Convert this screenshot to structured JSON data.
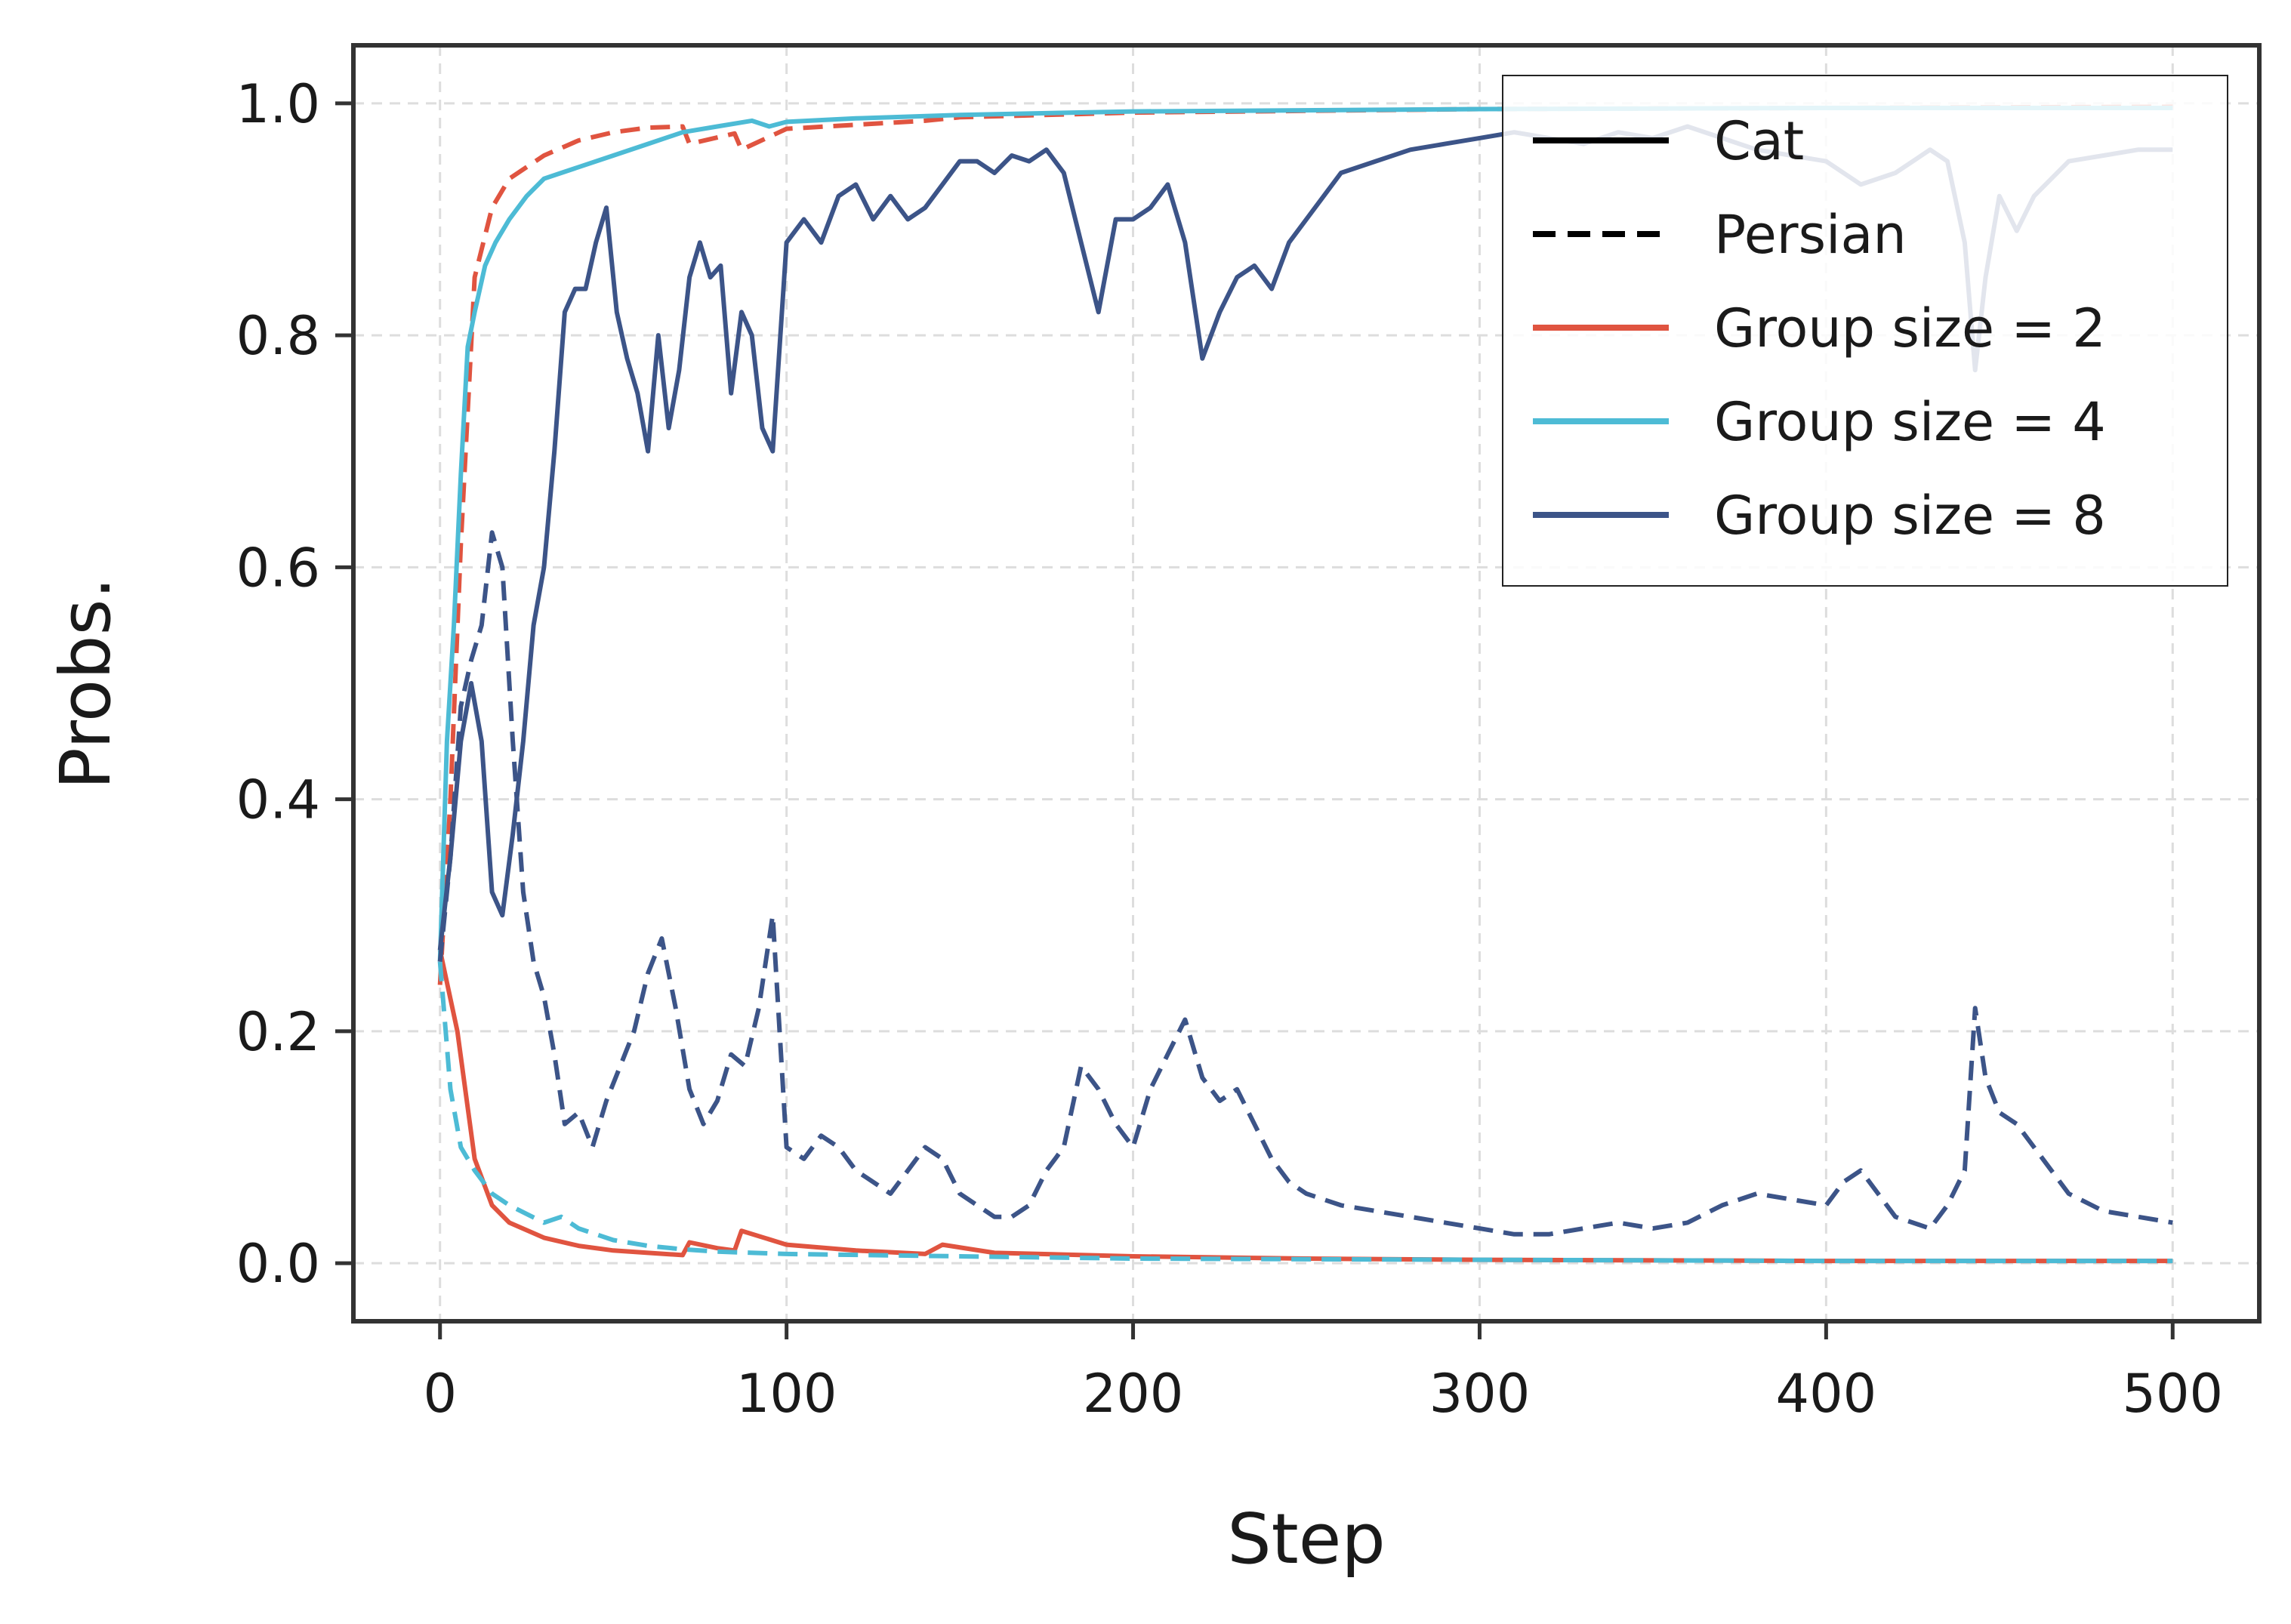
{
  "chart_data": {
    "type": "line",
    "title": "",
    "xlabel": "Step",
    "ylabel": "Probs.",
    "xlim": [
      -25,
      525
    ],
    "ylim": [
      -0.05,
      1.05
    ],
    "xticks": [
      0,
      100,
      200,
      300,
      400,
      500
    ],
    "xtick_labels": [
      "0",
      "100",
      "200",
      "300",
      "400",
      "500"
    ],
    "yticks": [
      0.0,
      0.2,
      0.4,
      0.6,
      0.8,
      1.0
    ],
    "ytick_labels": [
      "0.0",
      "0.2",
      "0.4",
      "0.6",
      "0.8",
      "1.0"
    ],
    "grid": true,
    "legend_position": "top-right",
    "legend": [
      {
        "label": "Cat",
        "color": "#000000",
        "style": "solid"
      },
      {
        "label": "Persian",
        "color": "#000000",
        "style": "dashed"
      },
      {
        "label": "Group size = 2",
        "color": "#e05440",
        "style": "solid"
      },
      {
        "label": "Group size = 4",
        "color": "#4dbbd5",
        "style": "solid"
      },
      {
        "label": "Group size = 8",
        "color": "#3c5488",
        "style": "solid"
      }
    ],
    "series": [
      {
        "name": "Group size = 2 (Cat)",
        "color": "#e05440",
        "style": "solid",
        "x": [
          0,
          5,
          10,
          15,
          20,
          30,
          40,
          50,
          60,
          70,
          72,
          80,
          85,
          87,
          100,
          120,
          140,
          145,
          160,
          200,
          250,
          300,
          400,
          500
        ],
        "y": [
          0.27,
          0.2,
          0.09,
          0.05,
          0.035,
          0.022,
          0.015,
          0.011,
          0.009,
          0.007,
          0.018,
          0.013,
          0.011,
          0.028,
          0.016,
          0.011,
          0.008,
          0.016,
          0.009,
          0.006,
          0.004,
          0.003,
          0.002,
          0.002
        ]
      },
      {
        "name": "Group size = 2 (Persian)",
        "color": "#e05440",
        "style": "dashed",
        "x": [
          0,
          3,
          6,
          10,
          15,
          20,
          30,
          40,
          50,
          60,
          70,
          72,
          85,
          87,
          100,
          140,
          150,
          200,
          300,
          400,
          500
        ],
        "y": [
          0.24,
          0.4,
          0.62,
          0.85,
          0.91,
          0.935,
          0.955,
          0.968,
          0.975,
          0.979,
          0.98,
          0.965,
          0.974,
          0.96,
          0.978,
          0.985,
          0.988,
          0.992,
          0.995,
          0.996,
          0.997
        ]
      },
      {
        "name": "Group size = 4 (Cat)",
        "color": "#4dbbd5",
        "style": "solid",
        "x": [
          0,
          2,
          4,
          6,
          8,
          10,
          13,
          16,
          20,
          25,
          30,
          35,
          40,
          50,
          60,
          70,
          80,
          90,
          95,
          100,
          120,
          150,
          200,
          300,
          400,
          500
        ],
        "y": [
          0.26,
          0.45,
          0.55,
          0.68,
          0.79,
          0.82,
          0.86,
          0.88,
          0.9,
          0.92,
          0.935,
          0.94,
          0.945,
          0.955,
          0.965,
          0.975,
          0.98,
          0.985,
          0.98,
          0.984,
          0.987,
          0.99,
          0.993,
          0.995,
          0.996,
          0.996
        ]
      },
      {
        "name": "Group size = 4 (Persian)",
        "color": "#4dbbd5",
        "style": "dashed",
        "x": [
          0,
          3,
          6,
          10,
          15,
          20,
          30,
          35,
          40,
          50,
          60,
          70,
          80,
          100,
          150,
          200,
          300,
          400,
          500
        ],
        "y": [
          0.26,
          0.15,
          0.1,
          0.08,
          0.06,
          0.05,
          0.035,
          0.04,
          0.03,
          0.02,
          0.015,
          0.012,
          0.01,
          0.008,
          0.006,
          0.004,
          0.003,
          0.002,
          0.002
        ]
      },
      {
        "name": "Group size = 8 (Cat)",
        "color": "#3c5488",
        "style": "solid",
        "x": [
          0,
          3,
          6,
          9,
          12,
          15,
          18,
          21,
          24,
          27,
          30,
          33,
          36,
          39,
          42,
          45,
          48,
          51,
          54,
          57,
          60,
          63,
          66,
          69,
          72,
          75,
          78,
          81,
          84,
          87,
          90,
          93,
          96,
          100,
          105,
          110,
          115,
          120,
          125,
          130,
          135,
          140,
          145,
          150,
          155,
          160,
          165,
          170,
          175,
          180,
          185,
          190,
          195,
          200,
          205,
          210,
          215,
          220,
          225,
          230,
          235,
          240,
          245,
          250,
          260,
          270,
          280,
          290,
          300,
          310,
          320,
          330,
          340,
          350,
          360,
          370,
          380,
          390,
          400,
          410,
          420,
          430,
          435,
          440,
          443,
          446,
          450,
          455,
          460,
          470,
          480,
          490,
          500
        ],
        "y": [
          0.27,
          0.35,
          0.45,
          0.5,
          0.45,
          0.32,
          0.3,
          0.37,
          0.45,
          0.55,
          0.6,
          0.7,
          0.82,
          0.84,
          0.84,
          0.88,
          0.91,
          0.82,
          0.78,
          0.75,
          0.7,
          0.8,
          0.72,
          0.77,
          0.85,
          0.88,
          0.85,
          0.86,
          0.75,
          0.82,
          0.8,
          0.72,
          0.7,
          0.88,
          0.9,
          0.88,
          0.92,
          0.93,
          0.9,
          0.92,
          0.9,
          0.91,
          0.93,
          0.95,
          0.95,
          0.94,
          0.955,
          0.95,
          0.96,
          0.94,
          0.88,
          0.82,
          0.9,
          0.9,
          0.91,
          0.93,
          0.88,
          0.78,
          0.82,
          0.85,
          0.86,
          0.84,
          0.88,
          0.9,
          0.94,
          0.95,
          0.96,
          0.965,
          0.97,
          0.975,
          0.97,
          0.965,
          0.975,
          0.97,
          0.98,
          0.97,
          0.96,
          0.955,
          0.95,
          0.93,
          0.94,
          0.96,
          0.95,
          0.88,
          0.77,
          0.85,
          0.92,
          0.89,
          0.92,
          0.95,
          0.955,
          0.96,
          0.96
        ]
      },
      {
        "name": "Group size = 8 (Persian)",
        "color": "#3c5488",
        "style": "dashed",
        "x": [
          0,
          3,
          6,
          9,
          12,
          15,
          18,
          21,
          24,
          27,
          30,
          33,
          36,
          40,
          44,
          48,
          52,
          56,
          60,
          64,
          68,
          72,
          76,
          80,
          84,
          88,
          92,
          96,
          100,
          105,
          110,
          115,
          120,
          125,
          130,
          135,
          140,
          145,
          150,
          155,
          160,
          165,
          170,
          175,
          180,
          185,
          190,
          195,
          200,
          205,
          210,
          215,
          220,
          225,
          230,
          235,
          240,
          245,
          250,
          260,
          270,
          280,
          290,
          300,
          310,
          320,
          330,
          340,
          350,
          360,
          370,
          380,
          390,
          400,
          405,
          410,
          415,
          420,
          425,
          430,
          435,
          440,
          443,
          446,
          450,
          455,
          460,
          465,
          470,
          480,
          490,
          500
        ],
        "y": [
          0.26,
          0.35,
          0.48,
          0.52,
          0.55,
          0.63,
          0.6,
          0.45,
          0.32,
          0.26,
          0.23,
          0.18,
          0.12,
          0.13,
          0.1,
          0.14,
          0.17,
          0.2,
          0.25,
          0.28,
          0.22,
          0.15,
          0.12,
          0.14,
          0.18,
          0.17,
          0.22,
          0.3,
          0.1,
          0.09,
          0.11,
          0.1,
          0.08,
          0.07,
          0.06,
          0.08,
          0.1,
          0.09,
          0.06,
          0.05,
          0.04,
          0.04,
          0.05,
          0.08,
          0.1,
          0.17,
          0.15,
          0.12,
          0.1,
          0.15,
          0.18,
          0.21,
          0.16,
          0.14,
          0.15,
          0.12,
          0.09,
          0.07,
          0.06,
          0.05,
          0.045,
          0.04,
          0.035,
          0.03,
          0.025,
          0.025,
          0.03,
          0.035,
          0.03,
          0.035,
          0.05,
          0.06,
          0.055,
          0.05,
          0.07,
          0.08,
          0.06,
          0.04,
          0.035,
          0.03,
          0.05,
          0.08,
          0.22,
          0.16,
          0.13,
          0.12,
          0.1,
          0.08,
          0.06,
          0.045,
          0.04,
          0.035
        ]
      }
    ]
  }
}
